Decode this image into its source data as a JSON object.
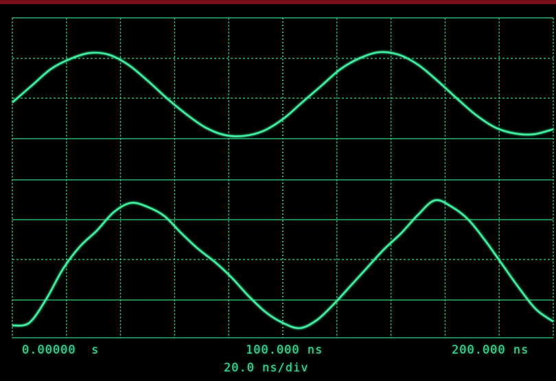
{
  "colors": {
    "trace": "#3ff0a0",
    "grid": "#2fd07f",
    "background": "#000000",
    "bezel": "#7a0f1c"
  },
  "time_axis": {
    "start_label": "0.00000  s",
    "mid_label": "100.000 ns",
    "end_label": "200.000 ns",
    "scale_label": "20.0 ns/div"
  },
  "chart_data": [
    {
      "type": "line",
      "series": [
        {
          "values": [
            0.4,
            0.6,
            0.8,
            0.92,
            0.99,
            0.97,
            0.85,
            0.66,
            0.45,
            0.26,
            0.1,
            0.01,
            0.0,
            0.06,
            0.2,
            0.4,
            0.6,
            0.8,
            0.93,
            1.0,
            0.97,
            0.85,
            0.66,
            0.45,
            0.25,
            0.1,
            0.03,
            0.02,
            0.08
          ]
        }
      ]
    },
    {
      "type": "line",
      "series": [
        {
          "values": [
            0.02,
            0.04,
            0.22,
            0.45,
            0.62,
            0.74,
            0.88,
            0.95,
            0.92,
            0.85,
            0.72,
            0.6,
            0.5,
            0.38,
            0.24,
            0.12,
            0.04,
            0.0,
            0.06,
            0.18,
            0.32,
            0.46,
            0.6,
            0.72,
            0.86,
            0.97,
            0.92,
            0.82,
            0.66,
            0.48,
            0.3,
            0.14,
            0.05
          ]
        }
      ]
    }
  ]
}
